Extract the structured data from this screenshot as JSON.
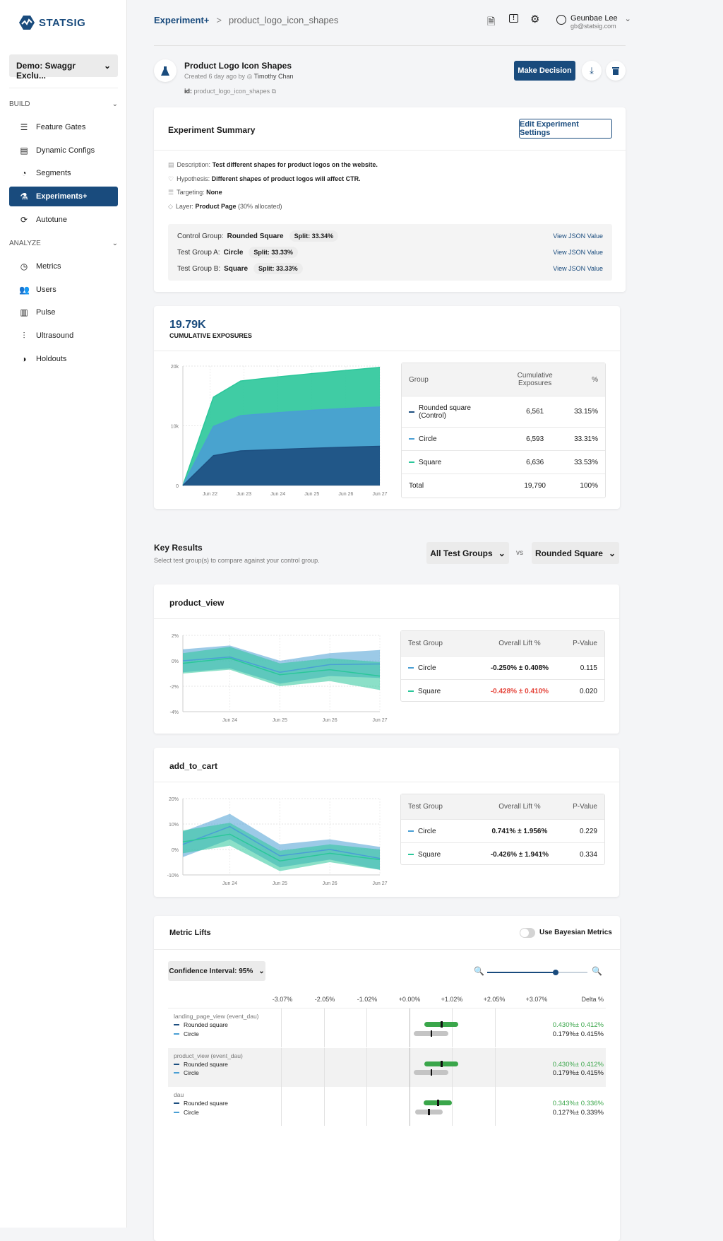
{
  "sidebar": {
    "logo": "STATSIG",
    "project": "Demo: Swaggr Exclu...",
    "build_label": "BUILD",
    "analyze_label": "ANALYZE",
    "build_items": [
      {
        "label": "Feature Gates",
        "icon": "sliders-icon"
      },
      {
        "label": "Dynamic Configs",
        "icon": "config-icon"
      },
      {
        "label": "Segments",
        "icon": "segments-icon"
      },
      {
        "label": "Experiments+",
        "icon": "flask-icon"
      },
      {
        "label": "Autotune",
        "icon": "autotune-icon"
      }
    ],
    "analyze_items": [
      {
        "label": "Metrics",
        "icon": "gauge-icon"
      },
      {
        "label": "Users",
        "icon": "users-icon"
      },
      {
        "label": "Pulse",
        "icon": "pulse-icon"
      },
      {
        "label": "Ultrasound",
        "icon": "waveform-icon"
      },
      {
        "label": "Holdouts",
        "icon": "holdout-icon"
      }
    ]
  },
  "header": {
    "breadcrumb_root": "Experiment+",
    "breadcrumb_sep": ">",
    "breadcrumb_current": "product_logo_icon_shapes",
    "user_name": "Geunbae Lee",
    "user_email": "gb@statsig.com"
  },
  "experiment": {
    "title": "Product Logo Icon Shapes",
    "created": "Created 6 day ago by",
    "author": "Timothy Chan",
    "id_label": "id:",
    "id": "product_logo_icon_shapes",
    "make_decision": "Make Decision"
  },
  "summary": {
    "title": "Experiment Summary",
    "edit": "Edit Experiment Settings",
    "fields": [
      {
        "label": "Description:",
        "value": "Test different shapes for product logos on the website.",
        "extra": ""
      },
      {
        "label": "Hypothesis:",
        "value": "Different shapes of product logos will affect CTR.",
        "extra": ""
      },
      {
        "label": "Targeting:",
        "value": "None",
        "extra": ""
      },
      {
        "label": "Layer:",
        "value": "Product Page",
        "extra": "(30% allocated)"
      }
    ],
    "groups": [
      {
        "label": "Control Group:",
        "name": "Rounded Square",
        "split": "Split: 33.34%",
        "link": "View JSON Value"
      },
      {
        "label": "Test Group A:",
        "name": "Circle",
        "split": "Split: 33.33%",
        "link": "View JSON Value"
      },
      {
        "label": "Test Group B:",
        "name": "Square",
        "split": "Split: 33.33%",
        "link": "View JSON Value"
      }
    ]
  },
  "exposures": {
    "total": "19.79K",
    "label": "CUMULATIVE EXPOSURES",
    "table": {
      "headers": [
        "Group",
        "Cumulative Exposures",
        "%"
      ],
      "rows": [
        {
          "group": "Rounded square (Control)",
          "value": "6,561",
          "pct": "33.15%",
          "color": "#1d4f80"
        },
        {
          "group": "Circle",
          "value": "6,593",
          "pct": "33.31%",
          "color": "#4a9fd4"
        },
        {
          "group": "Square",
          "value": "6,636",
          "pct": "33.53%",
          "color": "#2bc79a"
        }
      ],
      "total": {
        "group": "Total",
        "value": "19,790",
        "pct": "100%"
      }
    }
  },
  "key_results": {
    "title": "Key Results",
    "subtitle": "Select test group(s) to compare against your control group.",
    "test_select": "All Test Groups",
    "vs": "vs",
    "control_select": "Rounded Square"
  },
  "metrics": [
    {
      "name": "product_view",
      "headers": [
        "Test Group",
        "Overall Lift %",
        "P-Value"
      ],
      "rows": [
        {
          "group": "Circle",
          "lift": "-0.250% ± 0.408%",
          "p": "0.115",
          "color": "#4a9fd4",
          "lift_color": "#1a1a1a"
        },
        {
          "group": "Square",
          "lift": "-0.428% ± 0.410%",
          "p": "0.020",
          "color": "#2bc79a",
          "lift_color": "#e5443a"
        }
      ]
    },
    {
      "name": "add_to_cart",
      "headers": [
        "Test Group",
        "Overall Lift %",
        "P-Value"
      ],
      "rows": [
        {
          "group": "Circle",
          "lift": "0.741% ± 1.956%",
          "p": "0.229",
          "color": "#4a9fd4",
          "lift_color": "#1a1a1a"
        },
        {
          "group": "Square",
          "lift": "-0.426% ± 1.941%",
          "p": "0.334",
          "color": "#2bc79a",
          "lift_color": "#1a1a1a"
        }
      ]
    }
  ],
  "metric_lifts": {
    "title": "Metric Lifts",
    "bayesian": "Use Bayesian Metrics",
    "bayesian_on": false,
    "ci": "Confidence Interval: 95%",
    "zoom_level": 0.68,
    "ticks": [
      "-3.07%",
      "-2.05%",
      "-1.02%",
      "+0.00%",
      "+1.02%",
      "+2.05%",
      "+3.07%"
    ],
    "delta_header": "Delta %",
    "rows": [
      {
        "metric": "landing_page_view (event_dau)",
        "groups": [
          {
            "name": "Rounded square",
            "lift": 0.43,
            "ci": 0.412,
            "text": "0.430%± 0.412%",
            "sig": true
          },
          {
            "name": "Circle",
            "lift": 0.179,
            "ci": 0.415,
            "text": "0.179%± 0.415%",
            "sig": false
          }
        ]
      },
      {
        "metric": "product_view (event_dau)",
        "groups": [
          {
            "name": "Rounded square",
            "lift": 0.43,
            "ci": 0.412,
            "text": "0.430%± 0.412%",
            "sig": true
          },
          {
            "name": "Circle",
            "lift": 0.179,
            "ci": 0.415,
            "text": "0.179%± 0.415%",
            "sig": false
          }
        ]
      },
      {
        "metric": "dau",
        "groups": [
          {
            "name": "Rounded square",
            "lift": 0.343,
            "ci": 0.336,
            "text": "0.343%± 0.336%",
            "sig": true
          },
          {
            "name": "Circle",
            "lift": 0.127,
            "ci": 0.339,
            "text": "0.127%± 0.339%",
            "sig": false
          }
        ]
      }
    ]
  },
  "chart_data": [
    {
      "type": "area",
      "stacked": true,
      "yticks": [
        "0",
        "10k",
        "20k"
      ],
      "ylim": [
        0,
        20000
      ],
      "xticks": [
        "Jun 22",
        "Jun 23",
        "Jun 24",
        "Jun 25",
        "Jun 26",
        "Jun 27"
      ],
      "x": [
        21.2,
        22.1,
        22.9,
        24,
        25,
        26,
        27
      ],
      "series": [
        {
          "name": "Rounded square (Control)",
          "color": "#1d4f80",
          "values": [
            0,
            5000,
            5800,
            6050,
            6250,
            6420,
            6561
          ]
        },
        {
          "name": "Circle",
          "color": "#4a9fd4",
          "values": [
            0,
            4900,
            5900,
            6150,
            6350,
            6500,
            6593
          ]
        },
        {
          "name": "Square",
          "color": "#2bc79a",
          "values": [
            0,
            4900,
            5800,
            6000,
            6150,
            6350,
            6636
          ]
        }
      ]
    },
    {
      "type": "line-band",
      "metric": "product_view",
      "yticks": [
        "-4%",
        "-2%",
        "0%",
        "2%"
      ],
      "ylim": [
        -4,
        2
      ],
      "xticks": [
        "Jun 24",
        "Jun 25",
        "Jun 26",
        "Jun 27"
      ],
      "x": [
        23.06,
        24,
        25,
        26,
        27
      ],
      "series": [
        {
          "name": "Circle",
          "color": "#4a9fd4",
          "values": [
            0,
            0.3,
            -0.9,
            -0.3,
            -0.25
          ],
          "ci": [
            0.9,
            0.9,
            0.9,
            0.9,
            1.1
          ]
        },
        {
          "name": "Square",
          "color": "#2bc79a",
          "values": [
            -0.2,
            0.2,
            -1.1,
            -0.7,
            -1.2
          ],
          "ci": [
            0.8,
            0.9,
            0.9,
            0.9,
            1.1
          ]
        }
      ]
    },
    {
      "type": "line-band",
      "metric": "add_to_cart",
      "yticks": [
        "-10%",
        "0%",
        "10%",
        "20%"
      ],
      "ylim": [
        -10,
        20
      ],
      "xticks": [
        "Jun 24",
        "Jun 25",
        "Jun 26",
        "Jun 27"
      ],
      "x": [
        23.06,
        24,
        25,
        26,
        27
      ],
      "series": [
        {
          "name": "Circle",
          "color": "#4a9fd4",
          "values": [
            2,
            9,
            -2.5,
            0,
            -3.5
          ],
          "ci": [
            5,
            5,
            4.5,
            4,
            4.5
          ]
        },
        {
          "name": "Square",
          "color": "#2bc79a",
          "values": [
            3,
            6,
            -4.5,
            -1.5,
            -4
          ],
          "ci": [
            4.5,
            4.5,
            4,
            3.5,
            4
          ]
        }
      ]
    }
  ]
}
